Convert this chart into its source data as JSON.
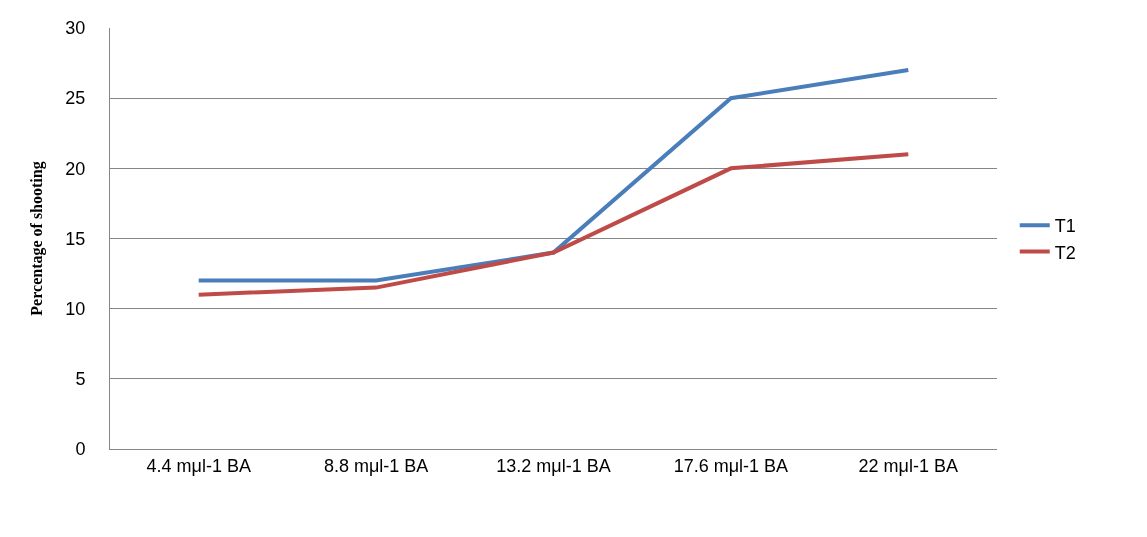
{
  "chart_data": {
    "type": "line",
    "ylabel": "Percentage of shooting",
    "categories": [
      "4.4 mμl-1 BA",
      "8.8 mμl-1 BA",
      "13.2 mμl-1 BA",
      "17.6 mμl-1 BA",
      "22 mμl-1 BA"
    ],
    "series": [
      {
        "name": "T1",
        "color": "#4a7ebb",
        "values": [
          12,
          12,
          14,
          25,
          27
        ]
      },
      {
        "name": "T2",
        "color": "#be4b48",
        "values": [
          11,
          11.5,
          14,
          20,
          21
        ]
      }
    ],
    "ylim": [
      0,
      30
    ],
    "yticks": [
      0,
      5,
      10,
      15,
      20,
      25,
      30
    ],
    "grid": "y",
    "legend": "right",
    "marker": "none",
    "line_style": "solid"
  }
}
